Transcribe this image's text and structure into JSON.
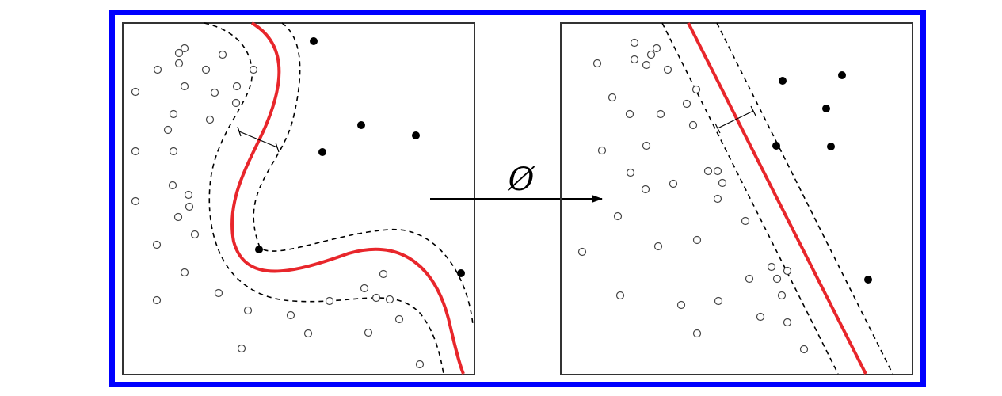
{
  "mapping": {
    "symbol": "Ø"
  },
  "colors": {
    "outer_frame": "#0000ff",
    "decision_boundary": "#e8262b",
    "margin_lines": "#000000",
    "positive_points": "#000000",
    "negative_points": "#ffffff"
  },
  "panels": [
    {
      "name": "input-space",
      "boundary_shape": "curved",
      "negative_class_marker": "hollow-circle",
      "positive_class_marker": "filled-circle"
    },
    {
      "name": "feature-space",
      "boundary_shape": "linear",
      "negative_class_marker": "hollow-circle",
      "positive_class_marker": "filled-circle"
    }
  ]
}
